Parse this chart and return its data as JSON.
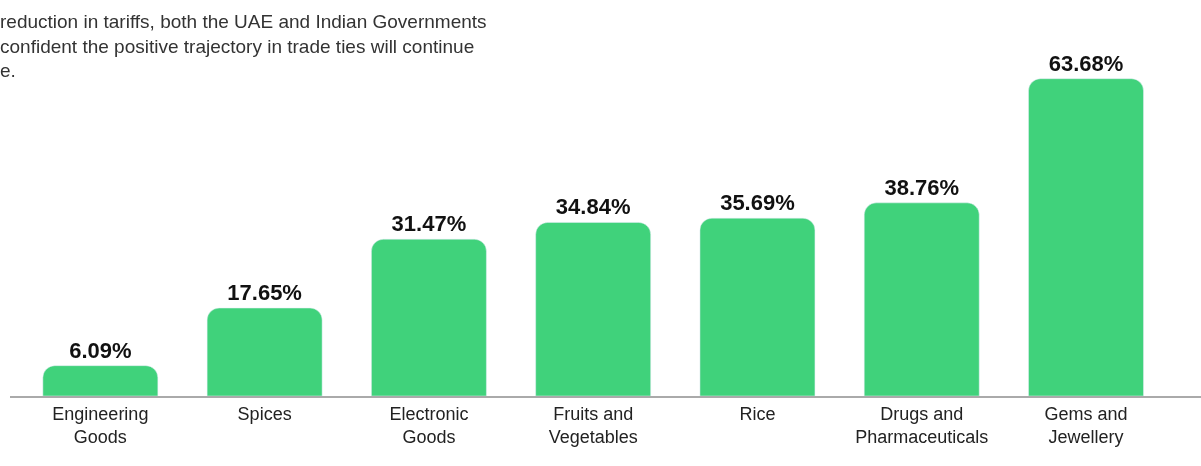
{
  "chart_data": {
    "type": "bar",
    "annotations": [
      "reduction in tariffs, both the UAE and Indian Governments",
      "confident the positive trajectory in trade ties will continue",
      "e."
    ],
    "categories": [
      "Engineering Goods",
      "Spices",
      "Electronic Goods",
      "Fruits and Vegetables",
      "Rice",
      "Drugs and Pharmaceuticals",
      "Gems and Jewellery"
    ],
    "values": [
      6.09,
      17.65,
      31.47,
      34.84,
      35.69,
      38.76,
      63.68
    ],
    "value_labels": [
      "6.09%",
      "17.65%",
      "31.47%",
      "34.84%",
      "35.69%",
      "38.76%",
      "63.68%"
    ],
    "color": "#40d27b"
  }
}
